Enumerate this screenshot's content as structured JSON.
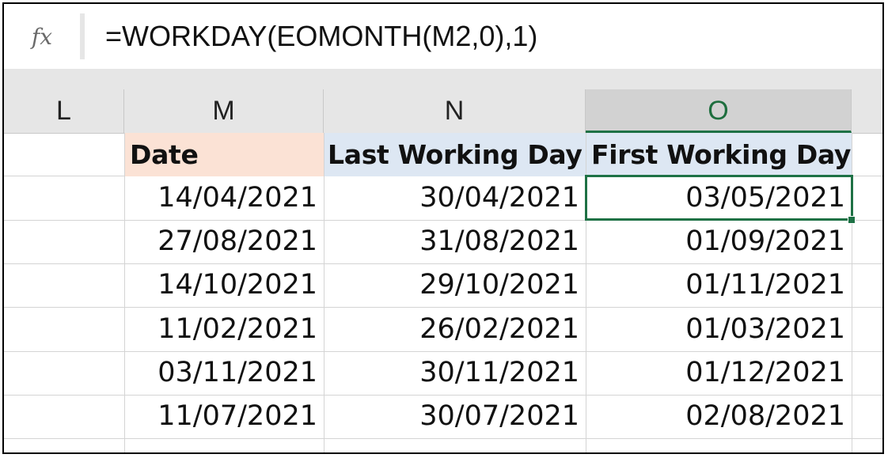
{
  "formula_bar": {
    "fx_label": "fx",
    "formula": "=WORKDAY(EOMONTH(M2,0),1)"
  },
  "columns": [
    {
      "letter": "L",
      "selected": false
    },
    {
      "letter": "M",
      "selected": false
    },
    {
      "letter": "N",
      "selected": false
    },
    {
      "letter": "O",
      "selected": true
    }
  ],
  "table": {
    "headers": [
      "Date",
      "Last Working Day",
      "First Working Day"
    ],
    "rows": [
      [
        "14/04/2021",
        "30/04/2021",
        "03/05/2021"
      ],
      [
        "27/08/2021",
        "31/08/2021",
        "01/09/2021"
      ],
      [
        "14/10/2021",
        "29/10/2021",
        "01/11/2021"
      ],
      [
        "11/02/2021",
        "26/02/2021",
        "01/03/2021"
      ],
      [
        "03/11/2021",
        "30/11/2021",
        "01/12/2021"
      ],
      [
        "11/07/2021",
        "30/07/2021",
        "02/08/2021"
      ]
    ]
  },
  "active_cell": "O2",
  "colors": {
    "selection_green": "#1e7145",
    "date_header_fill": "#fbe2d5",
    "working_day_header_fill": "#dde7f3"
  }
}
